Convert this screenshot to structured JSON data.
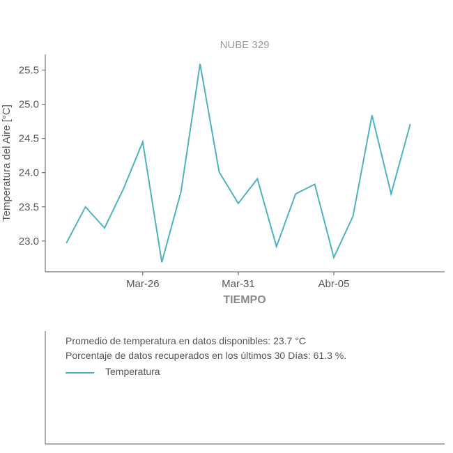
{
  "chart_data": {
    "type": "line",
    "title": "NUBE 329",
    "xlabel": "TIEMPO",
    "ylabel": "Temperatura del Aire [°C]",
    "x": [
      1,
      2,
      3,
      4,
      5,
      6,
      7,
      8,
      9,
      10,
      11,
      12,
      13,
      14,
      15,
      16,
      17,
      18,
      19
    ],
    "x_ticks": [
      {
        "x": 5,
        "label": "Mar-26"
      },
      {
        "x": 10,
        "label": "Mar-31"
      },
      {
        "x": 15,
        "label": "Abr-05"
      }
    ],
    "xlim": [
      -0.1,
      20.8
    ],
    "y_ticks": [
      23.0,
      23.5,
      24.0,
      24.5,
      25.0,
      25.5
    ],
    "y_tick_labels": [
      "23.0",
      "23.5",
      "24.0",
      "24.5",
      "25.0",
      "25.5"
    ],
    "ylim": [
      22.55,
      25.73
    ],
    "series": [
      {
        "name": "Temperatura",
        "color": "#4fb3bf",
        "values": [
          22.97,
          23.5,
          23.19,
          23.77,
          24.45,
          22.69,
          23.72,
          25.59,
          24.01,
          23.55,
          23.91,
          22.92,
          23.69,
          23.83,
          22.76,
          23.36,
          24.84,
          23.69,
          24.71
        ]
      }
    ],
    "grid": false,
    "legend": "bottom-panel"
  },
  "info": {
    "line1": "Promedio de temperatura en datos disponibles: 23.7 °C",
    "line2": "Porcentaje de datos recuperados en los últimos 30 Días: 61.3 %.",
    "legend_label": "Temperatura"
  }
}
